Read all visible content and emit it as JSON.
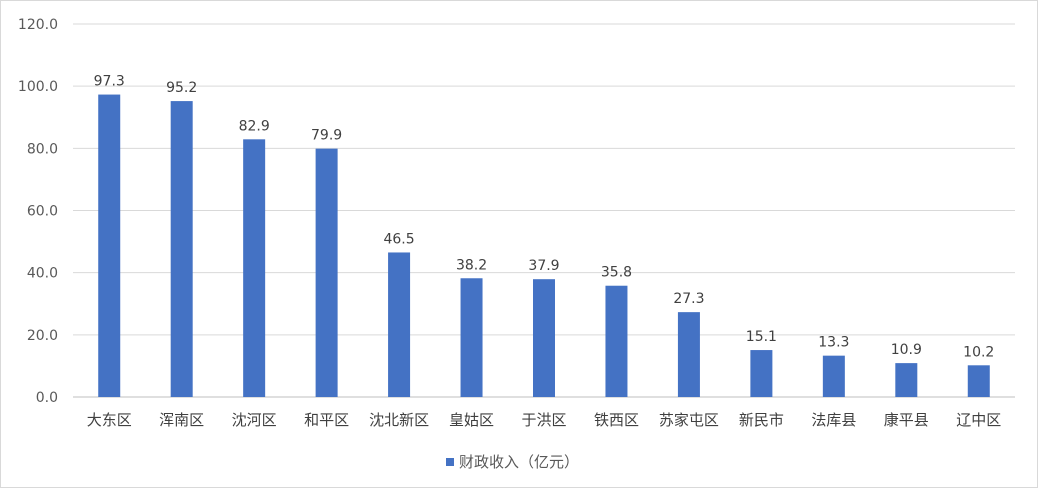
{
  "chart_data": {
    "type": "bar",
    "categories": [
      "大东区",
      "浑南区",
      "沈河区",
      "和平区",
      "沈北新区",
      "皇姑区",
      "于洪区",
      "铁西区",
      "苏家屯区",
      "新民市",
      "法库县",
      "康平县",
      "辽中区"
    ],
    "series": [
      {
        "name": "财政收入（亿元）",
        "values": [
          97.3,
          95.2,
          82.9,
          79.9,
          46.5,
          38.2,
          37.9,
          35.8,
          27.3,
          15.1,
          13.3,
          10.9,
          10.2
        ],
        "color": "#4472C4"
      }
    ],
    "value_labels": [
      "97.3",
      "95.2",
      "82.9",
      "79.9",
      "46.5",
      "38.2",
      "37.9",
      "35.8",
      "27.3",
      "15.1",
      "13.3",
      "10.9",
      "10.2"
    ],
    "ylim": [
      0,
      120
    ],
    "yticks": [
      "0.0",
      "20.0",
      "40.0",
      "60.0",
      "80.0",
      "100.0",
      "120.0"
    ],
    "title": "",
    "xlabel": "",
    "ylabel": "",
    "grid": true,
    "legend_position": "bottom"
  }
}
